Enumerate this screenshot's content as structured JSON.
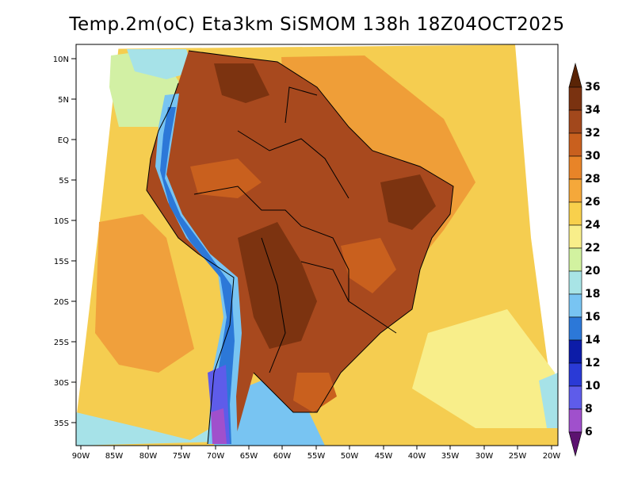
{
  "title": "Temp.2m(oC) Eta3km SiSMOM 138h 18Z04OCT2025",
  "lat_labels": [
    "10N",
    "5N",
    "EQ",
    "5S",
    "10S",
    "15S",
    "20S",
    "25S",
    "30S",
    "35S"
  ],
  "lon_labels": [
    "90W",
    "85W",
    "80W",
    "75W",
    "70W",
    "65W",
    "60W",
    "55W",
    "50W",
    "45W",
    "40W",
    "35W",
    "30W",
    "25W",
    "20W"
  ],
  "colorbar": {
    "labels": [
      "36",
      "34",
      "32",
      "30",
      "28",
      "26",
      "24",
      "22",
      "20",
      "18",
      "16",
      "14",
      "12",
      "10",
      "8",
      "6"
    ],
    "colors": [
      "#5a2406",
      "#7a3210",
      "#a2481c",
      "#c9601e",
      "#e88428",
      "#f5a83a",
      "#f8d04c",
      "#f8ee8a",
      "#d2f2a0",
      "#a8e4e6",
      "#78c4f2",
      "#2c78d8",
      "#0c1ca8",
      "#2a3ad6",
      "#5e5cea",
      "#a050cc",
      "#5c1270"
    ]
  },
  "map_colors": {
    "ocean_warm": "#f6d04c",
    "ocean_hot": "#f3a238",
    "land_hot": "#a8491e",
    "land_very_hot": "#7c3310",
    "andes_cold": "#2c78d8",
    "borders": "#000000"
  }
}
